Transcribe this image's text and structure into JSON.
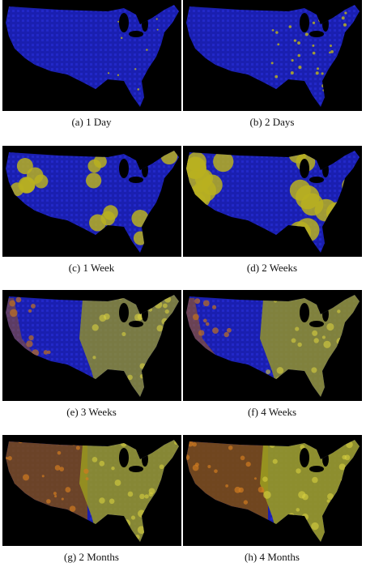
{
  "panels": [
    {
      "caption": "(a) 1 Day"
    },
    {
      "caption": "(b) 2 Days"
    },
    {
      "caption": "(c) 1 Week"
    },
    {
      "caption": "(d) 2 Weeks"
    },
    {
      "caption": "(e) 3 Weeks"
    },
    {
      "caption": "(f) 4 Weeks"
    },
    {
      "caption": "(g) 2 Months"
    },
    {
      "caption": "(h) 4 Months"
    }
  ]
}
